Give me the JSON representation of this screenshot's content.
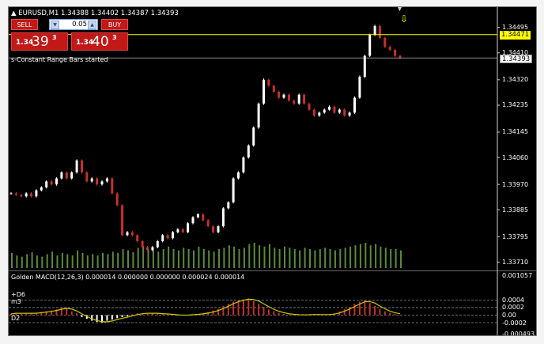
{
  "header": {
    "symbol_line": "EURUSD,M1  1.34388 1.34402 1.34387 1.34393",
    "status_text": "s-Constant Range Bars started",
    "indicator_line": "Golden MACD(12,26,3) 0.000014 0.000000 0.000000 0.000024 0.000014"
  },
  "one_click": {
    "sell_label": "SELL",
    "buy_label": "BUY",
    "lot_value": "0.05",
    "sell_small": "1.34",
    "sell_big": "39",
    "sell_sup": "3",
    "buy_small": "1.34",
    "buy_big": "40",
    "buy_sup": "3"
  },
  "price_tags": {
    "alert_price": "1.34471",
    "bid_price": "1.34393"
  },
  "main_scale": [
    "1.34495",
    "1.34410",
    "1.34320",
    "1.34235",
    "1.34145",
    "1.34060",
    "1.33970",
    "1.33885",
    "1.33795",
    "1.33710"
  ],
  "indicator_scale": [
    "0.001057",
    "0.0004",
    "0.0002",
    "0.00",
    "-0.0002",
    "-0.000493"
  ],
  "indicator_levels": [
    "+D6",
    "m3",
    "D2"
  ],
  "colors": {
    "background": "#000000",
    "bull_candle": "#ffffff",
    "bear_candle": "#c8302a",
    "volume_bar": "#5c8a3c",
    "alert_line": "#ffff00",
    "bid_line": "#bfbfbf",
    "macd_positive": "#c8302a",
    "signal_line": "#c8c800"
  },
  "icons": {
    "trade_arrow": "down-arrow-icon",
    "chart_shift": "triangle-marker-icon"
  },
  "chart_data": {
    "type": "candlestick",
    "symbol": "EURUSD",
    "timeframe": "M1",
    "ylim": [
      1.3369,
      1.3451
    ],
    "close": [
      1.3394,
      1.33935,
      1.3393,
      1.3394,
      1.3393,
      1.3395,
      1.3396,
      1.3398,
      1.3397,
      1.3399,
      1.3401,
      1.3399,
      1.3401,
      1.3405,
      1.3401,
      1.3398,
      1.3399,
      1.3397,
      1.3398,
      1.3399,
      1.3394,
      1.339,
      1.338,
      1.3381,
      1.338,
      1.3378,
      1.3376,
      1.3375,
      1.3376,
      1.3378,
      1.338,
      1.3379,
      1.3381,
      1.3382,
      1.3381,
      1.3384,
      1.3386,
      1.3387,
      1.3385,
      1.3383,
      1.3381,
      1.3383,
      1.3389,
      1.3391,
      1.3399,
      1.3401,
      1.3406,
      1.341,
      1.3416,
      1.3424,
      1.3432,
      1.343,
      1.3428,
      1.3426,
      1.3427,
      1.3425,
      1.3424,
      1.3427,
      1.3424,
      1.3422,
      1.342,
      1.3421,
      1.3422,
      1.3423,
      1.3421,
      1.3422,
      1.342,
      1.3421,
      1.3426,
      1.3433,
      1.344,
      1.3447,
      1.345,
      1.3446,
      1.3443,
      1.3442,
      1.344,
      1.34393
    ],
    "volume_scale": [
      0,
      100
    ],
    "volume": [
      24,
      20,
      18,
      22,
      25,
      20,
      18,
      22,
      26,
      20,
      24,
      22,
      20,
      28,
      24,
      20,
      22,
      20,
      24,
      22,
      26,
      24,
      30,
      28,
      25,
      32,
      35,
      30,
      28,
      26,
      30,
      34,
      30,
      28,
      32,
      30,
      28,
      34,
      30,
      28,
      26,
      30,
      32,
      36,
      34,
      30,
      32,
      38,
      40,
      36,
      34,
      38,
      32,
      30,
      34,
      32,
      30,
      28,
      32,
      30,
      28,
      30,
      32,
      30,
      28,
      30,
      32,
      34,
      36,
      38,
      40,
      36,
      38,
      34,
      32,
      30,
      30,
      28
    ],
    "macd_ylim": [
      -0.000493,
      0.001057
    ],
    "macd": [
      3e-05,
      5e-05,
      6e-05,
      4e-05,
      5e-05,
      6e-05,
      8e-05,
      0.0001,
      0.00012,
      0.00015,
      0.0002,
      0.00018,
      0.0001,
      5e-05,
      -5e-05,
      -0.0001,
      -0.00015,
      -0.00018,
      -0.0002,
      -0.00015,
      -0.00012,
      -8e-05,
      -5e-05,
      -3e-05,
      2e-05,
      5e-05,
      4e-05,
      6e-05,
      5e-05,
      4e-05,
      3e-05,
      2e-05,
      1e-05,
      -1e-05,
      0.0,
      1e-05,
      2e-05,
      3e-05,
      5e-05,
      8e-05,
      0.00012,
      0.00016,
      0.00024,
      0.0003,
      0.00036,
      0.0004,
      0.00042,
      0.00044,
      0.00038,
      0.0003,
      0.00022,
      0.00015,
      0.0001,
      6e-05,
      3e-05,
      2e-05,
      1e-05,
      0.0,
      1e-05,
      2e-05,
      2e-05,
      1e-05,
      1e-05,
      2e-05,
      5e-05,
      0.0001,
      0.00016,
      0.00022,
      0.0003,
      0.00036,
      0.0004,
      0.00032,
      0.00024,
      0.00016,
      0.0001,
      6e-05,
      3e-05,
      1.4e-05
    ]
  }
}
